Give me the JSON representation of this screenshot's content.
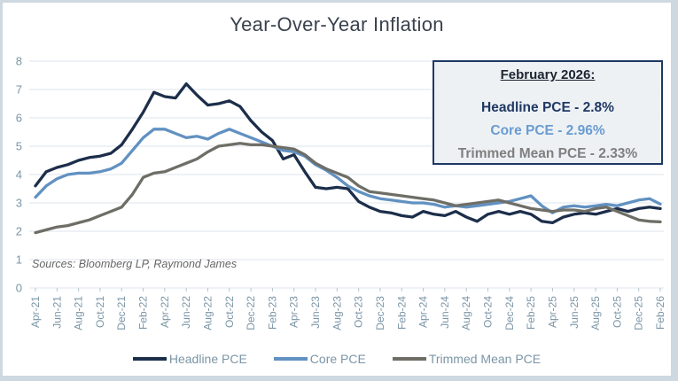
{
  "title": "Year-Over-Year Inflation",
  "sources_note": "Sources: Bloomberg LP, Raymond James",
  "colors": {
    "headline_navy": "#1c2e4a",
    "core_blue": "#6191c1",
    "trimmed_gray": "#6e6e67",
    "axis_text": "#7b95a6",
    "gridline": "#dce6ee",
    "tick_mark": "#b6c5cf",
    "title_text": "#39424e",
    "sources_text": "#666666",
    "callout_bg": "#eef1f4",
    "callout_border": "#1f3864",
    "callout_navy_text": "#1f3864",
    "callout_blue_text": "#699cd1",
    "callout_gray_text": "#7f7f7f",
    "frame_border": "#cdd8e0"
  },
  "callout": {
    "heading": "February 2026:",
    "lines": [
      {
        "text": "Headline PCE - 2.8%",
        "color": "#1f3864"
      },
      {
        "text": "Core PCE - 2.96%",
        "color": "#699cd1"
      },
      {
        "text": "Trimmed Mean PCE - 2.33%",
        "color": "#7f7f7f"
      }
    ]
  },
  "legend": [
    {
      "label": "Headline PCE",
      "color": "#1c2e4a"
    },
    {
      "label": "Core PCE",
      "color": "#6191c1"
    },
    {
      "label": "Trimmed Mean PCE",
      "color": "#6e6e67"
    }
  ],
  "chart_data": {
    "type": "line",
    "title": "Year-Over-Year Inflation",
    "xlabel": "",
    "ylabel": "",
    "ylim": [
      0,
      8
    ],
    "yticks": [
      0,
      1,
      2,
      3,
      4,
      5,
      6,
      7,
      8
    ],
    "grid": true,
    "legend_position": "bottom",
    "xtick_every": 2,
    "x": [
      "Apr-21",
      "May-21",
      "Jun-21",
      "Jul-21",
      "Aug-21",
      "Sep-21",
      "Oct-21",
      "Nov-21",
      "Dec-21",
      "Jan-22",
      "Feb-22",
      "Mar-22",
      "Apr-22",
      "May-22",
      "Jun-22",
      "Jul-22",
      "Aug-22",
      "Sep-22",
      "Oct-22",
      "Nov-22",
      "Dec-22",
      "Jan-23",
      "Feb-23",
      "Mar-23",
      "Apr-23",
      "May-23",
      "Jun-23",
      "Jul-23",
      "Aug-23",
      "Sep-23",
      "Oct-23",
      "Nov-23",
      "Dec-23",
      "Jan-24",
      "Feb-24",
      "Mar-24",
      "Apr-24",
      "May-24",
      "Jun-24",
      "Jul-24",
      "Aug-24",
      "Sep-24",
      "Oct-24",
      "Nov-24",
      "Dec-24",
      "Jan-25",
      "Feb-25",
      "Mar-25",
      "Apr-25",
      "May-25",
      "Jun-25",
      "Jul-25",
      "Aug-25",
      "Sep-25",
      "Oct-25",
      "Nov-25",
      "Dec-25",
      "Jan-26",
      "Feb-26"
    ],
    "series": [
      {
        "name": "Headline PCE",
        "color": "#1c2e4a",
        "values": [
          3.6,
          4.1,
          4.25,
          4.35,
          4.5,
          4.6,
          4.65,
          4.75,
          5.05,
          5.6,
          6.2,
          6.9,
          6.75,
          6.7,
          7.2,
          6.8,
          6.45,
          6.5,
          6.6,
          6.4,
          5.9,
          5.5,
          5.2,
          4.55,
          4.7,
          4.1,
          3.55,
          3.5,
          3.55,
          3.5,
          3.05,
          2.85,
          2.7,
          2.65,
          2.55,
          2.5,
          2.7,
          2.6,
          2.55,
          2.7,
          2.5,
          2.35,
          2.6,
          2.7,
          2.6,
          2.7,
          2.6,
          2.35,
          2.3,
          2.5,
          2.6,
          2.65,
          2.6,
          2.7,
          2.8,
          2.7,
          2.8,
          2.85,
          2.8
        ]
      },
      {
        "name": "Core PCE",
        "color": "#6191c1",
        "values": [
          3.2,
          3.6,
          3.85,
          4.0,
          4.05,
          4.05,
          4.1,
          4.2,
          4.4,
          4.85,
          5.3,
          5.6,
          5.6,
          5.45,
          5.3,
          5.35,
          5.25,
          5.45,
          5.6,
          5.45,
          5.3,
          5.15,
          5.0,
          4.85,
          4.8,
          4.65,
          4.35,
          4.15,
          3.9,
          3.6,
          3.4,
          3.25,
          3.15,
          3.1,
          3.05,
          3.0,
          3.0,
          2.95,
          2.85,
          2.9,
          2.85,
          2.9,
          2.95,
          3.0,
          3.05,
          3.15,
          3.25,
          2.9,
          2.65,
          2.85,
          2.9,
          2.85,
          2.9,
          2.95,
          2.9,
          3.0,
          3.1,
          3.15,
          2.96
        ]
      },
      {
        "name": "Trimmed Mean PCE",
        "color": "#6e6e67",
        "values": [
          1.95,
          2.05,
          2.15,
          2.2,
          2.3,
          2.4,
          2.55,
          2.7,
          2.85,
          3.3,
          3.9,
          4.05,
          4.1,
          4.25,
          4.4,
          4.55,
          4.8,
          5.0,
          5.05,
          5.1,
          5.05,
          5.05,
          5.0,
          4.95,
          4.9,
          4.7,
          4.4,
          4.2,
          4.05,
          3.9,
          3.6,
          3.4,
          3.35,
          3.3,
          3.25,
          3.2,
          3.15,
          3.1,
          3.0,
          2.9,
          2.95,
          3.0,
          3.05,
          3.1,
          3.0,
          2.9,
          2.8,
          2.75,
          2.7,
          2.75,
          2.75,
          2.7,
          2.8,
          2.85,
          2.7,
          2.55,
          2.4,
          2.35,
          2.33
        ]
      }
    ],
    "annotation": {
      "heading": "February 2026:",
      "values": {
        "Headline PCE": "2.8%",
        "Core PCE": "2.96%",
        "Trimmed Mean PCE": "2.33%"
      }
    }
  }
}
